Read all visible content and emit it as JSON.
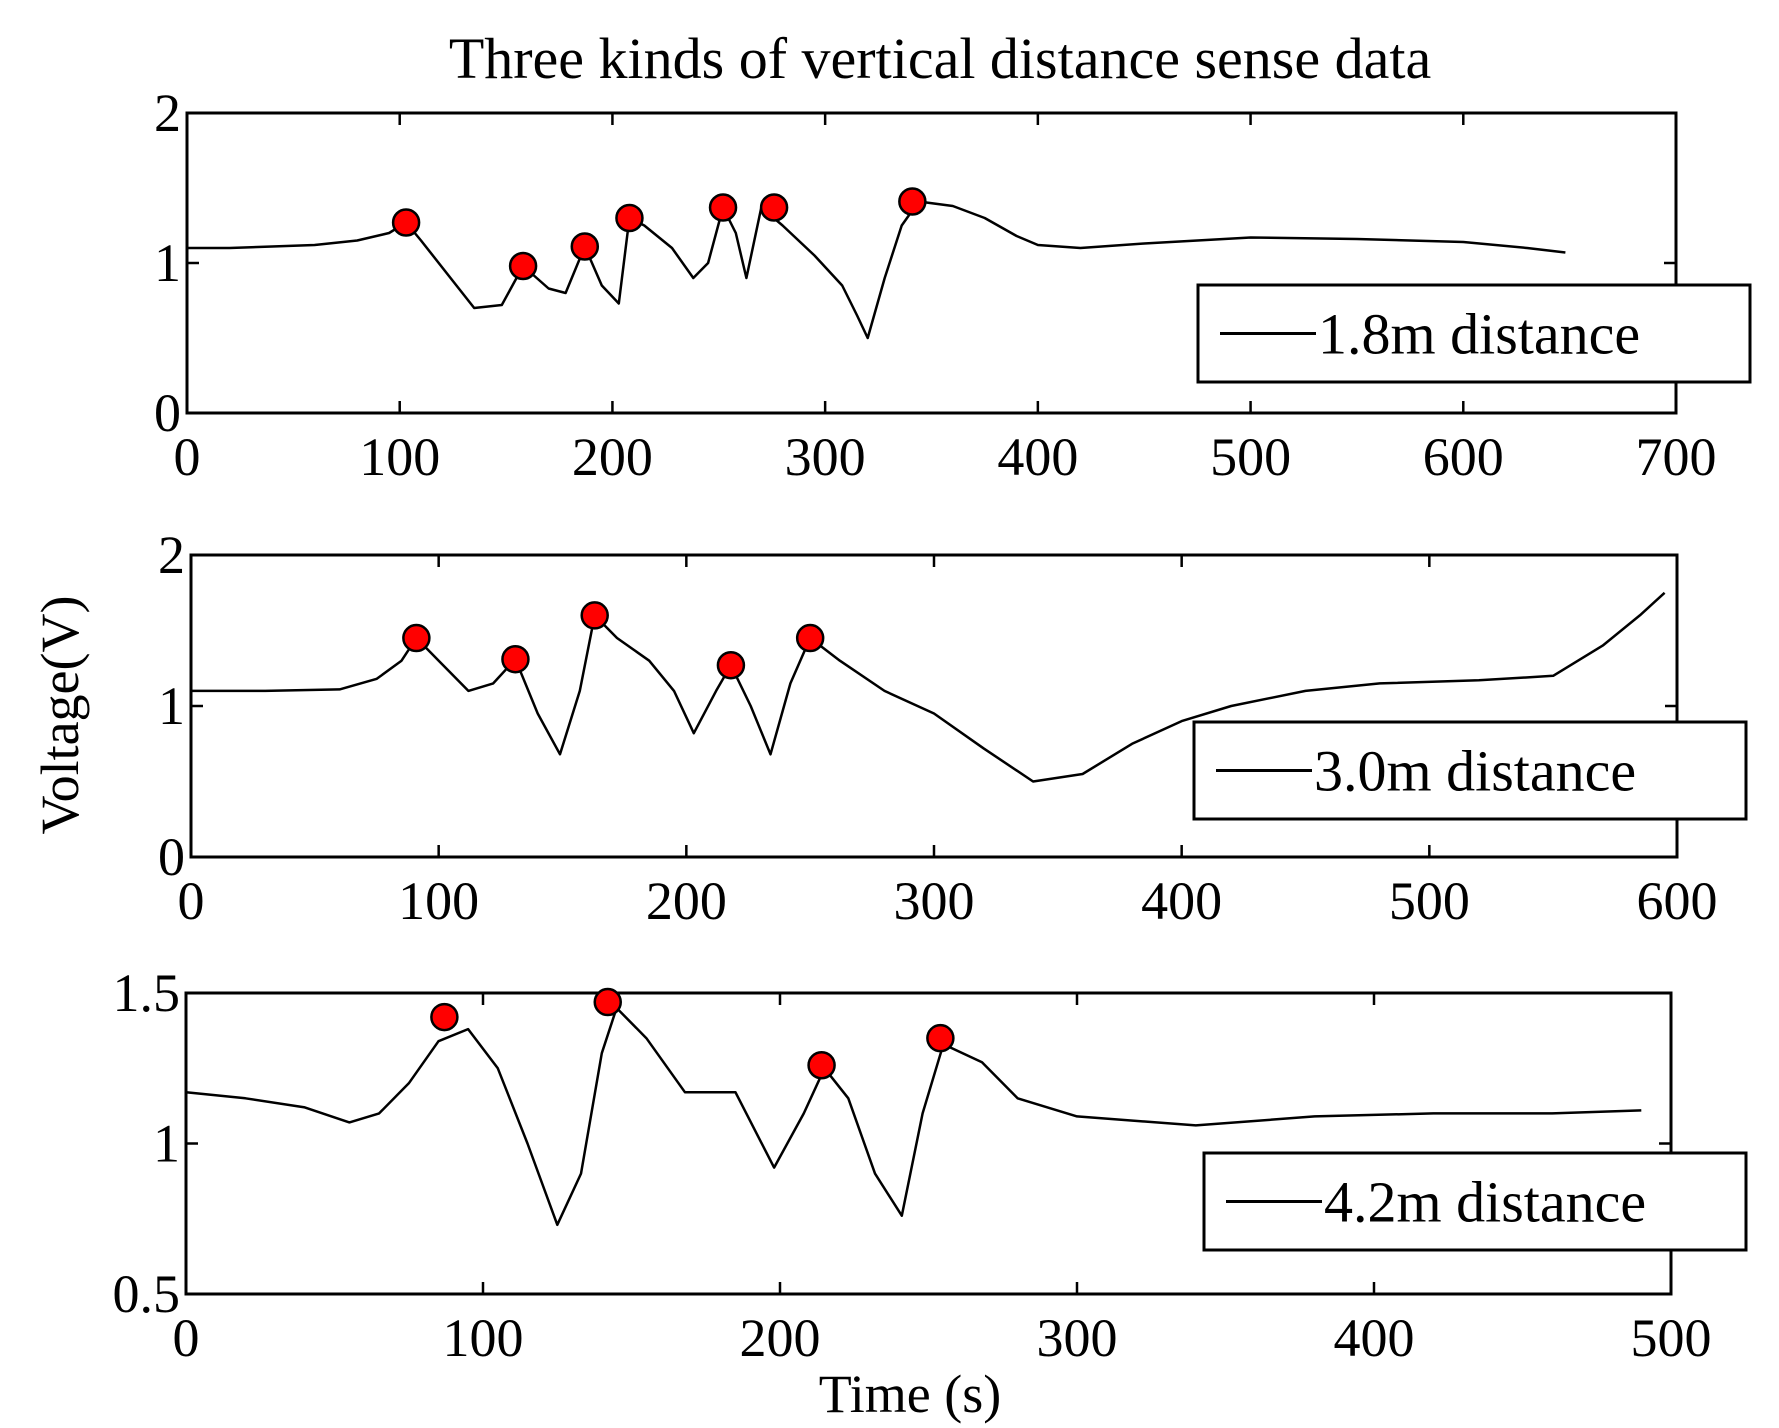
{
  "chart_data": {
    "type": "line",
    "title": "Three kinds of vertical distance sense data",
    "xlabel": "Time (s)",
    "ylabel": "Voltage(V)",
    "marker_color": "#ff0000",
    "line_color": "#000000",
    "subplots": [
      {
        "name": "1.8m distance",
        "legend_position": "lower-right",
        "xlim": [
          0,
          700
        ],
        "ylim": [
          0,
          2
        ],
        "xticks": [
          0,
          100,
          200,
          300,
          400,
          500,
          600,
          700
        ],
        "yticks": [
          0,
          1,
          2
        ],
        "series": [
          [
            0,
            1.1
          ],
          [
            20,
            1.1
          ],
          [
            40,
            1.11
          ],
          [
            60,
            1.12
          ],
          [
            80,
            1.15
          ],
          [
            95,
            1.2
          ],
          [
            103,
            1.27
          ],
          [
            110,
            1.15
          ],
          [
            125,
            0.88
          ],
          [
            135,
            0.7
          ],
          [
            148,
            0.72
          ],
          [
            158,
            0.98
          ],
          [
            170,
            0.83
          ],
          [
            178,
            0.8
          ],
          [
            187,
            1.11
          ],
          [
            195,
            0.85
          ],
          [
            203,
            0.73
          ],
          [
            208,
            1.3
          ],
          [
            215,
            1.25
          ],
          [
            228,
            1.1
          ],
          [
            238,
            0.9
          ],
          [
            245,
            1.0
          ],
          [
            252,
            1.37
          ],
          [
            258,
            1.2
          ],
          [
            263,
            0.9
          ],
          [
            270,
            1.37
          ],
          [
            280,
            1.25
          ],
          [
            295,
            1.05
          ],
          [
            308,
            0.85
          ],
          [
            315,
            0.65
          ],
          [
            320,
            0.5
          ],
          [
            328,
            0.9
          ],
          [
            336,
            1.25
          ],
          [
            344,
            1.41
          ],
          [
            360,
            1.38
          ],
          [
            375,
            1.3
          ],
          [
            390,
            1.18
          ],
          [
            400,
            1.12
          ],
          [
            420,
            1.1
          ],
          [
            450,
            1.13
          ],
          [
            500,
            1.17
          ],
          [
            550,
            1.16
          ],
          [
            600,
            1.14
          ],
          [
            630,
            1.1
          ],
          [
            648,
            1.07
          ]
        ],
        "markers": [
          [
            103,
            1.27
          ],
          [
            158,
            0.98
          ],
          [
            187,
            1.11
          ],
          [
            208,
            1.3
          ],
          [
            252,
            1.37
          ],
          [
            276,
            1.37
          ],
          [
            341,
            1.41
          ]
        ]
      },
      {
        "name": "3.0m distance",
        "legend_position": "lower-right",
        "xlim": [
          0,
          600
        ],
        "ylim": [
          0,
          2
        ],
        "xticks": [
          0,
          100,
          200,
          300,
          400,
          500,
          600
        ],
        "yticks": [
          0,
          1,
          2
        ],
        "series": [
          [
            0,
            1.1
          ],
          [
            30,
            1.1
          ],
          [
            60,
            1.11
          ],
          [
            75,
            1.18
          ],
          [
            85,
            1.3
          ],
          [
            91,
            1.45
          ],
          [
            100,
            1.3
          ],
          [
            112,
            1.1
          ],
          [
            122,
            1.15
          ],
          [
            131,
            1.31
          ],
          [
            140,
            0.95
          ],
          [
            149,
            0.68
          ],
          [
            157,
            1.1
          ],
          [
            163,
            1.6
          ],
          [
            172,
            1.45
          ],
          [
            185,
            1.3
          ],
          [
            195,
            1.1
          ],
          [
            203,
            0.82
          ],
          [
            212,
            1.1
          ],
          [
            218,
            1.27
          ],
          [
            226,
            1.0
          ],
          [
            234,
            0.68
          ],
          [
            242,
            1.15
          ],
          [
            250,
            1.45
          ],
          [
            262,
            1.3
          ],
          [
            280,
            1.1
          ],
          [
            300,
            0.95
          ],
          [
            320,
            0.72
          ],
          [
            340,
            0.5
          ],
          [
            360,
            0.55
          ],
          [
            380,
            0.75
          ],
          [
            400,
            0.9
          ],
          [
            420,
            1.0
          ],
          [
            450,
            1.1
          ],
          [
            480,
            1.15
          ],
          [
            520,
            1.17
          ],
          [
            550,
            1.2
          ],
          [
            570,
            1.4
          ],
          [
            585,
            1.6
          ],
          [
            595,
            1.75
          ]
        ],
        "markers": [
          [
            91,
            1.45
          ],
          [
            131,
            1.31
          ],
          [
            163,
            1.6
          ],
          [
            218,
            1.27
          ],
          [
            250,
            1.45
          ]
        ]
      },
      {
        "name": "4.2m distance",
        "legend_position": "lower-right",
        "xlim": [
          0,
          500
        ],
        "ylim": [
          0.5,
          1.5
        ],
        "xticks": [
          0,
          100,
          200,
          300,
          400,
          500
        ],
        "yticks": [
          0.5,
          1,
          1.5
        ],
        "series": [
          [
            0,
            1.17
          ],
          [
            20,
            1.15
          ],
          [
            40,
            1.12
          ],
          [
            55,
            1.07
          ],
          [
            65,
            1.1
          ],
          [
            75,
            1.2
          ],
          [
            85,
            1.34
          ],
          [
            95,
            1.38
          ],
          [
            105,
            1.25
          ],
          [
            115,
            1.0
          ],
          [
            125,
            0.73
          ],
          [
            133,
            0.9
          ],
          [
            140,
            1.3
          ],
          [
            145,
            1.45
          ],
          [
            155,
            1.35
          ],
          [
            168,
            1.17
          ],
          [
            185,
            1.17
          ],
          [
            198,
            0.92
          ],
          [
            208,
            1.1
          ],
          [
            215,
            1.25
          ],
          [
            223,
            1.15
          ],
          [
            232,
            0.9
          ],
          [
            241,
            0.76
          ],
          [
            248,
            1.1
          ],
          [
            255,
            1.33
          ],
          [
            268,
            1.27
          ],
          [
            280,
            1.15
          ],
          [
            300,
            1.09
          ],
          [
            340,
            1.06
          ],
          [
            380,
            1.09
          ],
          [
            420,
            1.1
          ],
          [
            460,
            1.1
          ],
          [
            490,
            1.11
          ]
        ],
        "markers": [
          [
            87,
            1.42
          ],
          [
            142,
            1.47
          ],
          [
            214,
            1.26
          ],
          [
            254,
            1.35
          ]
        ]
      }
    ]
  }
}
